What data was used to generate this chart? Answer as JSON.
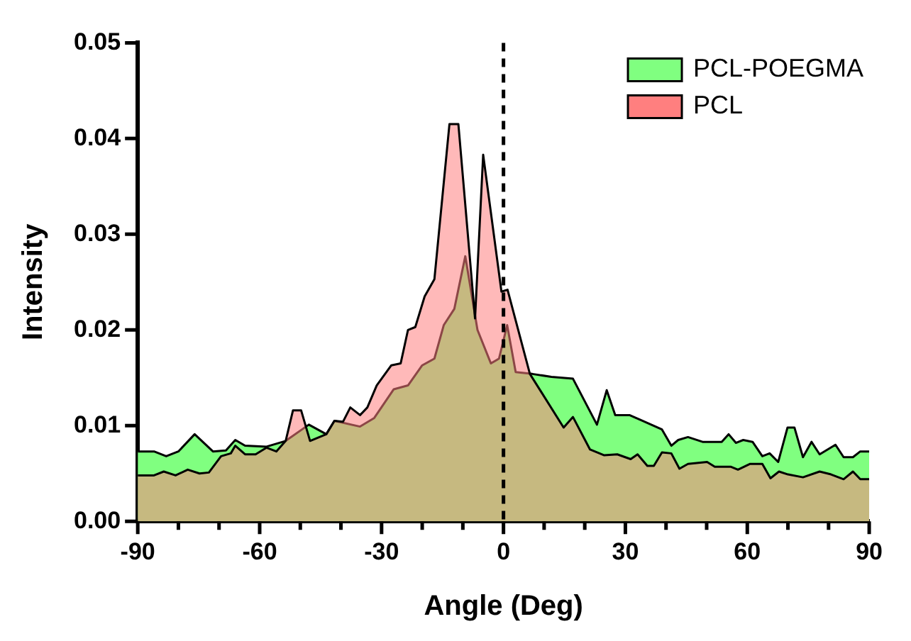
{
  "chart_data": {
    "type": "area",
    "xlabel": "Angle (Deg)",
    "ylabel": "Intensity",
    "xlim": [
      -90,
      90
    ],
    "xticks": [
      -90,
      {
        "value": -80,
        "label": null
      },
      {
        "value": -70,
        "label": null
      },
      -60,
      {
        "value": -50,
        "label": null
      },
      {
        "value": -40,
        "label": null
      },
      -30,
      {
        "value": -20,
        "label": null
      },
      {
        "value": -10,
        "label": null
      },
      0,
      {
        "value": 10,
        "label": null
      },
      {
        "value": 20,
        "label": null
      },
      30,
      {
        "value": 40,
        "label": null
      },
      {
        "value": 50,
        "label": null
      },
      60,
      {
        "value": 70,
        "label": null
      },
      {
        "value": 80,
        "label": null
      },
      90
    ],
    "ylim": [
      0,
      0.05
    ],
    "yticks": [
      {
        "value": 0,
        "label": "0.00"
      },
      {
        "value": 0.01,
        "label": "0.01"
      },
      {
        "value": 0.02,
        "label": "0.02"
      },
      {
        "value": 0.03,
        "label": "0.03"
      },
      {
        "value": 0.04,
        "label": "0.04"
      },
      {
        "value": 0.05,
        "label": "0.05"
      }
    ],
    "grid": false,
    "legend": "top right",
    "ref_lines": [
      {
        "axis": "x",
        "value": 0,
        "line_style": "dashed",
        "color": "#000000"
      }
    ],
    "series": [
      {
        "name": "PCL-POEGMA",
        "color": "#80ff80",
        "x": [
          -90,
          -86,
          -83,
          -80,
          -76,
          -71.5,
          -68.3,
          -66,
          -63.6,
          -58.3,
          -53.6,
          -47.9,
          -43.6,
          -41.6,
          -35.3,
          -31.8,
          -27,
          -23.5,
          -20,
          -17,
          -14.7,
          -12.1,
          -9.4,
          -6.4,
          -3.1,
          -1.1,
          0.9,
          3,
          7.1,
          11.8,
          17.1,
          23,
          25.4,
          27.5,
          31,
          33.7,
          39,
          41.3,
          43,
          45.4,
          49,
          53.7,
          55.4,
          57.2,
          59,
          61.3,
          63.7,
          65.5,
          67.6,
          69.9,
          71.6,
          73.7,
          75.8,
          77.8,
          81.7,
          83.7,
          86,
          87.8,
          90
        ],
        "values": [
          0.0073,
          0.0073,
          0.0068,
          0.0073,
          0.0091,
          0.0073,
          0.0074,
          0.0085,
          0.0079,
          0.0078,
          0.0084,
          0.0101,
          0.0091,
          0.0105,
          0.0099,
          0.0108,
          0.0138,
          0.0142,
          0.0163,
          0.017,
          0.0205,
          0.0222,
          0.0277,
          0.02,
          0.0165,
          0.017,
          0.0205,
          0.0156,
          0.0154,
          0.0151,
          0.0149,
          0.0101,
          0.0137,
          0.0111,
          0.0111,
          0.0106,
          0.0096,
          0.0079,
          0.0085,
          0.0088,
          0.0083,
          0.0083,
          0.0091,
          0.0082,
          0.0085,
          0.0083,
          0.0068,
          0.0071,
          0.0062,
          0.0098,
          0.0098,
          0.0067,
          0.0083,
          0.007,
          0.008,
          0.0067,
          0.0067,
          0.0073,
          0.0073
        ]
      },
      {
        "name": "PCL",
        "color": "#ff7f7f",
        "x": [
          -90,
          -86,
          -83.6,
          -80.7,
          -77.7,
          -74.8,
          -72.5,
          -69.5,
          -67.1,
          -66,
          -63.6,
          -61,
          -58.3,
          -55.9,
          -53.6,
          -51.8,
          -49.8,
          -47.6,
          -43.6,
          -41.6,
          -39.5,
          -37.7,
          -35.3,
          -33.5,
          -31.2,
          -27.6,
          -25.3,
          -23.5,
          -21.7,
          -19.4,
          -17,
          -13.3,
          -11.1,
          -7,
          -5,
          -0.5,
          1,
          3,
          6.5,
          14.8,
          17.1,
          21.3,
          24.8,
          28,
          31.3,
          33,
          35.4,
          37,
          39,
          41.3,
          43.3,
          45.4,
          50.1,
          52,
          56,
          57.7,
          60.7,
          63.7,
          65.7,
          67.8,
          70,
          73.7,
          77.8,
          80.6,
          83.7,
          86,
          87.8,
          90
        ],
        "values": [
          0.0048,
          0.0048,
          0.0052,
          0.0048,
          0.0054,
          0.005,
          0.0051,
          0.0068,
          0.0071,
          0.0079,
          0.007,
          0.007,
          0.0077,
          0.0073,
          0.0084,
          0.0116,
          0.0116,
          0.0084,
          0.0091,
          0.0105,
          0.0104,
          0.0119,
          0.0111,
          0.0119,
          0.0142,
          0.0163,
          0.0165,
          0.02,
          0.0203,
          0.0235,
          0.0253,
          0.0415,
          0.0415,
          0.0212,
          0.0383,
          0.024,
          0.0242,
          0.021,
          0.0154,
          0.0098,
          0.0109,
          0.0075,
          0.0069,
          0.007,
          0.0065,
          0.007,
          0.0058,
          0.0058,
          0.0072,
          0.0071,
          0.0055,
          0.006,
          0.0062,
          0.0057,
          0.0057,
          0.0054,
          0.006,
          0.006,
          0.0045,
          0.0052,
          0.0049,
          0.0046,
          0.0052,
          0.0049,
          0.0044,
          0.0052,
          0.0044,
          0.0044
        ]
      }
    ]
  }
}
